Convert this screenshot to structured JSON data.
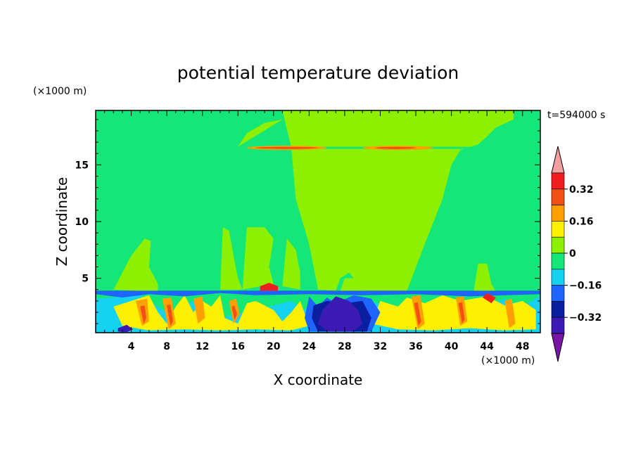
{
  "chart_data": {
    "type": "heatmap",
    "title": "potential temperature deviation",
    "xlabel": "X coordinate",
    "ylabel": "Z coordinate",
    "x_unit": "(×1000 m)",
    "y_unit": "(×1000 m)",
    "time_label": "t=594000 s",
    "xlim": [
      0,
      50
    ],
    "ylim": [
      0.2,
      19.8
    ],
    "x_ticks": [
      4,
      8,
      12,
      16,
      20,
      24,
      28,
      32,
      36,
      40,
      44,
      48
    ],
    "y_ticks": [
      5,
      10,
      15
    ],
    "colorbar": {
      "levels": [
        -0.4,
        -0.32,
        -0.24,
        -0.16,
        -0.08,
        0,
        0.08,
        0.16,
        0.24,
        0.32,
        0.4
      ],
      "colors": [
        "#7a14a8",
        "#3c1ab4",
        "#0a1ea0",
        "#1e64ff",
        "#14d2f0",
        "#14e678",
        "#8cf000",
        "#fff000",
        "#ffa000",
        "#f05014",
        "#f01e1e",
        "#f5a0a0"
      ],
      "tick_labels": [
        "0.32",
        "0.16",
        "0",
        "−0.16",
        "−0.32"
      ],
      "tick_values": [
        0.32,
        0.16,
        0,
        -0.16,
        -0.32
      ]
    },
    "regions": [
      {
        "value": 0.04,
        "polygon": [
          [
            21,
            19.8
          ],
          [
            22,
            16.5
          ],
          [
            22.5,
            12
          ],
          [
            24,
            8
          ],
          [
            25,
            4
          ],
          [
            27,
            3.9
          ],
          [
            27.5,
            5
          ],
          [
            28.5,
            5.5
          ],
          [
            29.5,
            4.5
          ],
          [
            30,
            3.9
          ],
          [
            35,
            3.9
          ],
          [
            37,
            8
          ],
          [
            39,
            12
          ],
          [
            40,
            15
          ],
          [
            41,
            16.3
          ],
          [
            43,
            16.8
          ],
          [
            44,
            17.5
          ],
          [
            45,
            18.3
          ],
          [
            47,
            19
          ],
          [
            47,
            19.8
          ]
        ]
      },
      {
        "value": 0.04,
        "polygon": [
          [
            16,
            16.6
          ],
          [
            17,
            17.8
          ],
          [
            19,
            18.7
          ],
          [
            21,
            19
          ]
        ]
      },
      {
        "value": 0.04,
        "polygon": [
          [
            2,
            4
          ],
          [
            4,
            7
          ],
          [
            5.5,
            8.5
          ],
          [
            6.2,
            8.3
          ],
          [
            6,
            6
          ],
          [
            7,
            4.5
          ],
          [
            7,
            3.8
          ]
        ]
      },
      {
        "value": 0.04,
        "polygon": [
          [
            14,
            4
          ],
          [
            14.3,
            9.5
          ],
          [
            15,
            9.2
          ],
          [
            15.5,
            7
          ],
          [
            16,
            5
          ],
          [
            16.5,
            4
          ]
        ]
      },
      {
        "value": 0.04,
        "polygon": [
          [
            16.5,
            4
          ],
          [
            17,
            9.5
          ],
          [
            19,
            9.5
          ],
          [
            20,
            8.5
          ],
          [
            19.5,
            6
          ],
          [
            20,
            4.5
          ]
        ]
      },
      {
        "value": 0.04,
        "polygon": [
          [
            21,
            4.3
          ],
          [
            21.5,
            8.5
          ],
          [
            22.5,
            7.5
          ],
          [
            23,
            5.5
          ],
          [
            23,
            4
          ]
        ]
      },
      {
        "value": 0.04,
        "polygon": [
          [
            42.5,
            3.8
          ],
          [
            43,
            6.3
          ],
          [
            44,
            6.3
          ],
          [
            44.5,
            4.5
          ],
          [
            45,
            3.8
          ]
        ]
      },
      {
        "value": -0.04,
        "polygon": [
          [
            0,
            3.8
          ],
          [
            50,
            3.8
          ],
          [
            50,
            0.2
          ],
          [
            0,
            0.2
          ]
        ]
      },
      {
        "value": -0.12,
        "polygon": [
          [
            5,
            3.5
          ],
          [
            8,
            2
          ],
          [
            11,
            3
          ],
          [
            14,
            1.5
          ],
          [
            18,
            2.2
          ],
          [
            22,
            3
          ],
          [
            24,
            2
          ],
          [
            26,
            2.8
          ],
          [
            30,
            3
          ],
          [
            34,
            2.5
          ],
          [
            36,
            2
          ],
          [
            38,
            3
          ],
          [
            42,
            2.2
          ],
          [
            46,
            3.2
          ],
          [
            48,
            2.5
          ],
          [
            50,
            3.5
          ],
          [
            50,
            0.2
          ],
          [
            0,
            0.2
          ],
          [
            0,
            3.2
          ]
        ]
      },
      {
        "value": 0.12,
        "polygon": [
          [
            6,
            3.5
          ],
          [
            7,
            2
          ],
          [
            8,
            1
          ],
          [
            9,
            2.5
          ],
          [
            10,
            3.5
          ],
          [
            11,
            2
          ],
          [
            12,
            3
          ],
          [
            13,
            2.5
          ],
          [
            14,
            3.5
          ],
          [
            14.5,
            1.5
          ],
          [
            16,
            1
          ],
          [
            17,
            2.8
          ],
          [
            18,
            3
          ],
          [
            20,
            2.2
          ],
          [
            21,
            1.2
          ],
          [
            22,
            2
          ],
          [
            23,
            3
          ],
          [
            24,
            0.8
          ],
          [
            22,
            0.4
          ],
          [
            18,
            0.5
          ],
          [
            14,
            0.4
          ],
          [
            10,
            0.5
          ],
          [
            6,
            0.4
          ],
          [
            3,
            0.8
          ],
          [
            2,
            2.5
          ]
        ]
      },
      {
        "value": 0.12,
        "polygon": [
          [
            32,
            3
          ],
          [
            34,
            2.5
          ],
          [
            35,
            3.3
          ],
          [
            37,
            2.8
          ],
          [
            39,
            3.5
          ],
          [
            41,
            3
          ],
          [
            44,
            3.4
          ],
          [
            46,
            2.6
          ],
          [
            48,
            3
          ],
          [
            49.5,
            2.2
          ],
          [
            49.5,
            0.5
          ],
          [
            46,
            0.4
          ],
          [
            42,
            0.6
          ],
          [
            38,
            0.4
          ],
          [
            34,
            0.5
          ],
          [
            31,
            1
          ]
        ]
      },
      {
        "value": 0.2,
        "polygon": [
          [
            4.5,
            3
          ],
          [
            5.2,
            0.8
          ],
          [
            6,
            1.2
          ],
          [
            5.8,
            3.2
          ]
        ]
      },
      {
        "value": 0.2,
        "polygon": [
          [
            7.5,
            3.2
          ],
          [
            8.2,
            0.5
          ],
          [
            9,
            1
          ],
          [
            8.5,
            3.3
          ]
        ]
      },
      {
        "value": 0.2,
        "polygon": [
          [
            11,
            3.2
          ],
          [
            11.5,
            1
          ],
          [
            12.3,
            1.5
          ],
          [
            12,
            3.4
          ]
        ]
      },
      {
        "value": 0.2,
        "polygon": [
          [
            15,
            3
          ],
          [
            15.5,
            1
          ],
          [
            16.2,
            1.8
          ],
          [
            15.8,
            3.2
          ]
        ]
      },
      {
        "value": 0.2,
        "polygon": [
          [
            35.5,
            3.4
          ],
          [
            36.2,
            0.5
          ],
          [
            37,
            1
          ],
          [
            36.5,
            3.5
          ]
        ]
      },
      {
        "value": 0.2,
        "polygon": [
          [
            40.5,
            3.3
          ],
          [
            41,
            0.8
          ],
          [
            41.8,
            1.2
          ],
          [
            41.4,
            3.4
          ]
        ]
      },
      {
        "value": 0.2,
        "polygon": [
          [
            46,
            3
          ],
          [
            46.5,
            0.6
          ],
          [
            47.2,
            1
          ],
          [
            46.8,
            3.2
          ]
        ]
      },
      {
        "value": 0.28,
        "polygon": [
          [
            5,
            2.5
          ],
          [
            5.4,
            1
          ],
          [
            5.7,
            1.5
          ],
          [
            5.5,
            2.6
          ]
        ]
      },
      {
        "value": 0.28,
        "polygon": [
          [
            8,
            2.6
          ],
          [
            8.4,
            0.8
          ],
          [
            8.7,
            1.2
          ],
          [
            8.4,
            2.7
          ]
        ]
      },
      {
        "value": 0.28,
        "polygon": [
          [
            15.3,
            2.5
          ],
          [
            15.6,
            1.3
          ],
          [
            15.9,
            1.8
          ],
          [
            15.6,
            2.6
          ]
        ]
      },
      {
        "value": 0.28,
        "polygon": [
          [
            35.8,
            2.8
          ],
          [
            36.3,
            0.8
          ],
          [
            36.6,
            1.2
          ],
          [
            36.2,
            2.9
          ]
        ]
      },
      {
        "value": 0.28,
        "polygon": [
          [
            40.8,
            2.8
          ],
          [
            41.2,
            1
          ],
          [
            41.5,
            1.4
          ],
          [
            41.2,
            2.9
          ]
        ]
      },
      {
        "value": -0.2,
        "polygon": [
          [
            24,
            3.4
          ],
          [
            25,
            2.5
          ],
          [
            26,
            3.3
          ],
          [
            27,
            2.8
          ],
          [
            29,
            3.5
          ],
          [
            31,
            3.2
          ],
          [
            32,
            2
          ],
          [
            31,
            0.3
          ],
          [
            24,
            0.3
          ],
          [
            23.5,
            1.5
          ]
        ]
      },
      {
        "value": -0.2,
        "polygon": [
          [
            0,
            3.6
          ],
          [
            3,
            3.3
          ],
          [
            6,
            3.6
          ],
          [
            10,
            3.4
          ],
          [
            14,
            3.7
          ],
          [
            18,
            3.5
          ],
          [
            24,
            3.6
          ],
          [
            30,
            3.5
          ],
          [
            36,
            3.6
          ],
          [
            42,
            3.4
          ],
          [
            50,
            3.6
          ],
          [
            50,
            3.9
          ],
          [
            0,
            3.9
          ]
        ]
      },
      {
        "value": -0.28,
        "polygon": [
          [
            24.5,
            2.6
          ],
          [
            26,
            3
          ],
          [
            28,
            2.8
          ],
          [
            30,
            3
          ],
          [
            31,
            1.5
          ],
          [
            30.5,
            0.3
          ],
          [
            25,
            0.3
          ],
          [
            24.3,
            1.5
          ]
        ]
      },
      {
        "value": -0.36,
        "polygon": [
          [
            25.5,
            2.2
          ],
          [
            27,
            3.4
          ],
          [
            28.5,
            3
          ],
          [
            29.5,
            2.2
          ],
          [
            30,
            1
          ],
          [
            29,
            0.3
          ],
          [
            26,
            0.3
          ],
          [
            25,
            1
          ]
        ]
      },
      {
        "value": -0.36,
        "polygon": [
          [
            2.5,
            0.6
          ],
          [
            3.5,
            0.9
          ],
          [
            4.2,
            0.5
          ],
          [
            3.5,
            0.25
          ],
          [
            2.5,
            0.3
          ]
        ]
      },
      {
        "value": 0.36,
        "polygon": [
          [
            18.5,
            4.3
          ],
          [
            19.5,
            4.6
          ],
          [
            20.5,
            4.3
          ],
          [
            20.5,
            3.9
          ],
          [
            18.5,
            3.9
          ]
        ]
      },
      {
        "value": 0.36,
        "polygon": [
          [
            43.5,
            3.3
          ],
          [
            44,
            3.7
          ],
          [
            45,
            3.3
          ],
          [
            44.5,
            2.8
          ]
        ]
      },
      {
        "value": 0.04,
        "polygon": [
          [
            27.5,
            3.9
          ],
          [
            28,
            5
          ],
          [
            29.5,
            5
          ],
          [
            30,
            3.9
          ]
        ]
      }
    ],
    "inversion_layer": {
      "height": 16.5,
      "value": -0.08,
      "bands": [
        {
          "x0": 17,
          "x1": 26,
          "value": 0.2
        },
        {
          "x0": 30,
          "x1": 38,
          "value": 0.2
        },
        {
          "x0": 18,
          "x1": 25,
          "value": 0.28
        },
        {
          "x0": 31.5,
          "x1": 36,
          "value": 0.28
        }
      ]
    }
  }
}
